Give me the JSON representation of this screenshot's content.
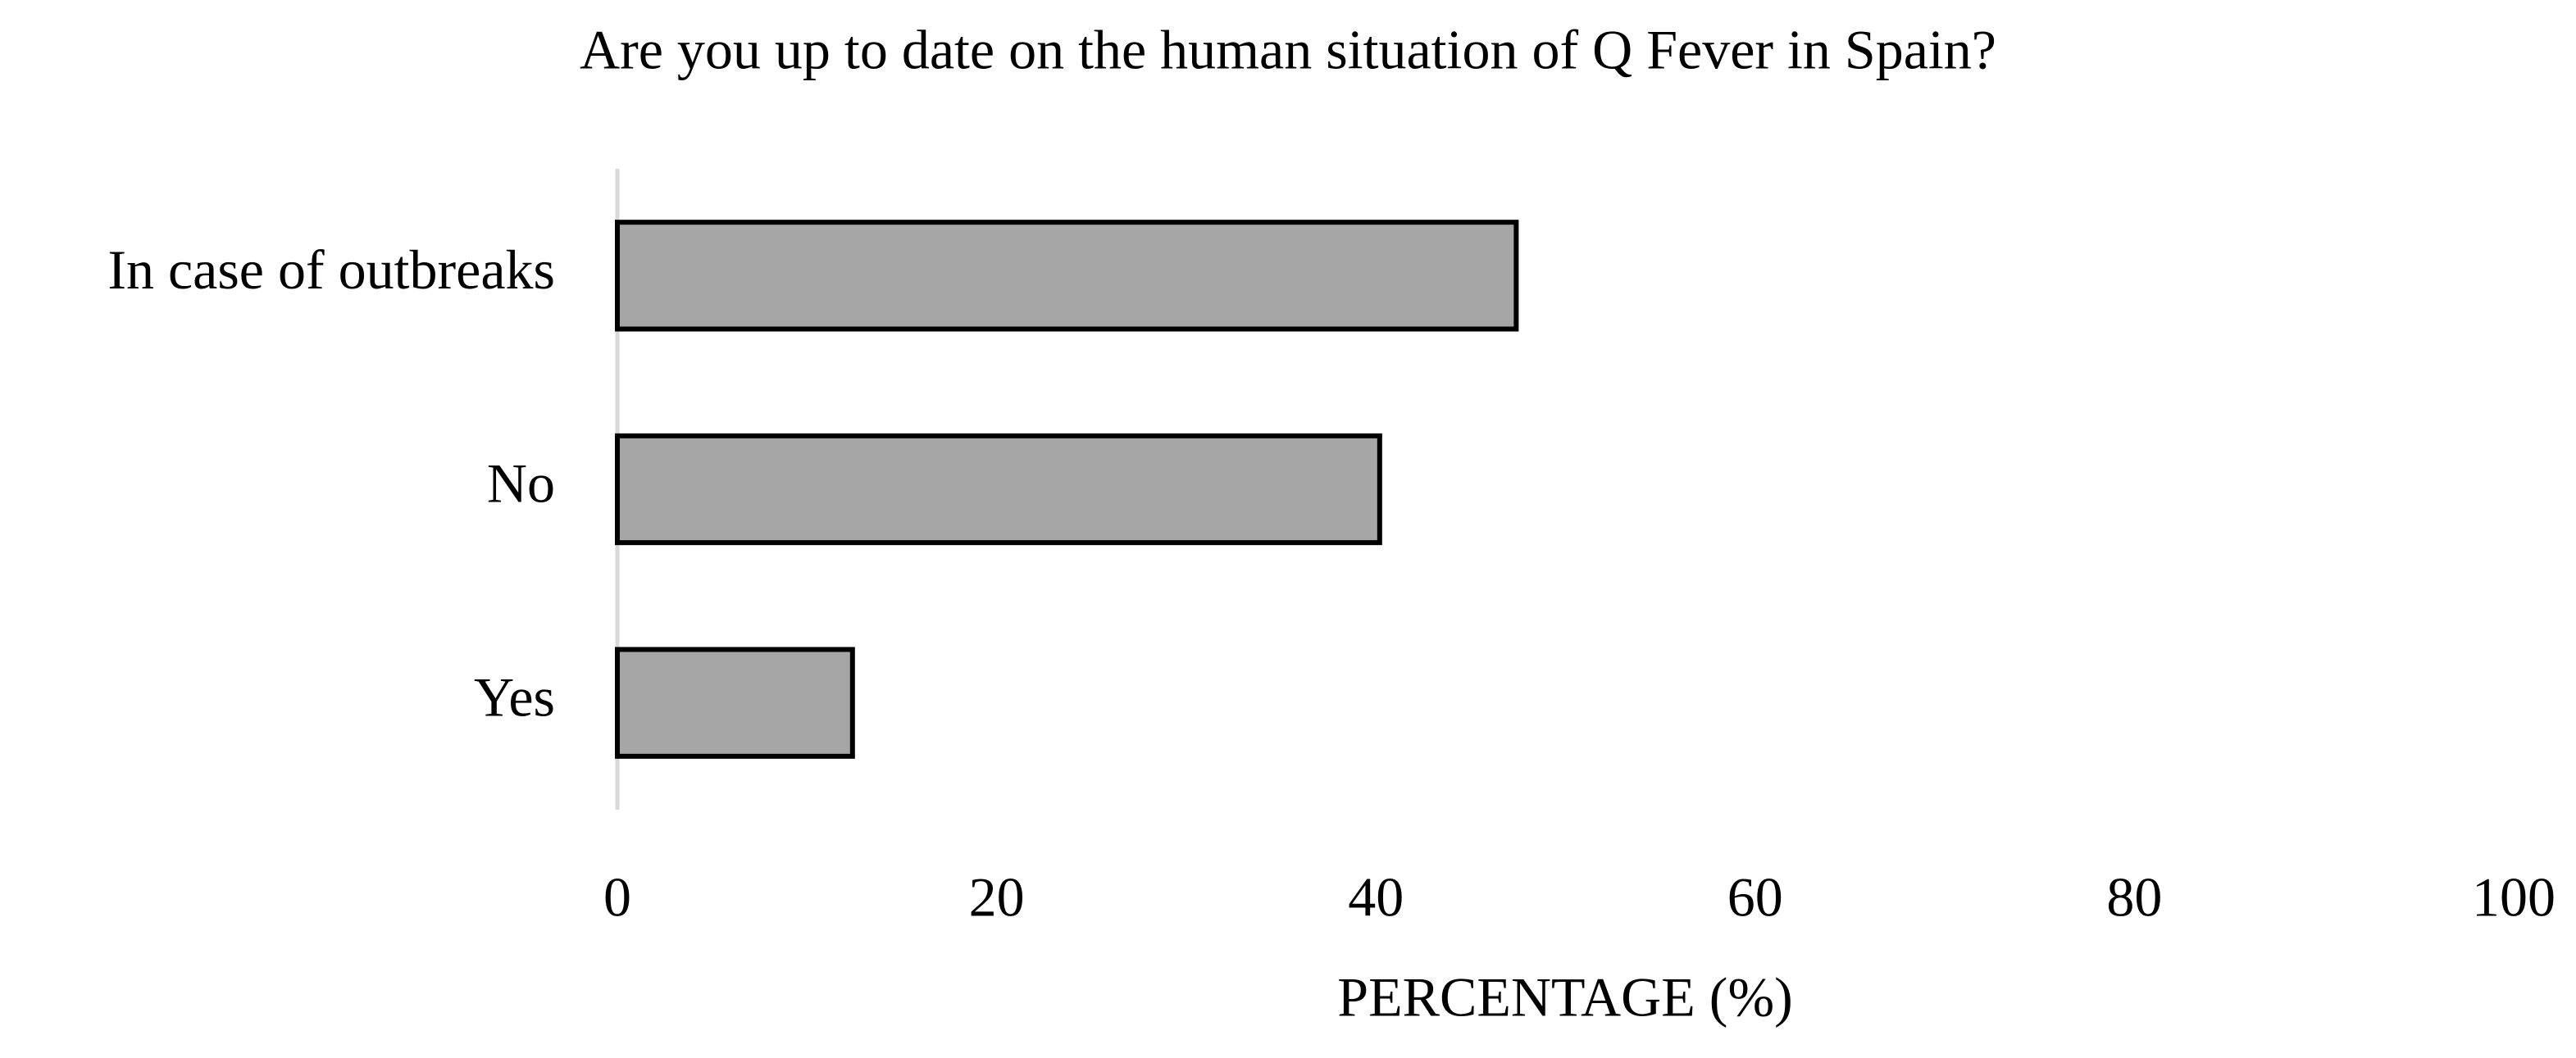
{
  "chart_data": {
    "type": "bar",
    "orientation": "horizontal",
    "title": "Are you up to date on the human situation of Q Fever in Spain?",
    "x_label": "PERCENTAGE (%)",
    "categories": [
      "In case of outbreaks",
      "No",
      "Yes"
    ],
    "values": [
      47.4,
      40.2,
      12.4
    ],
    "color": "#a6a6a6",
    "xlim": [
      0,
      100
    ],
    "xticks": [
      0,
      20,
      40,
      60,
      80,
      100
    ],
    "grid": false
  }
}
